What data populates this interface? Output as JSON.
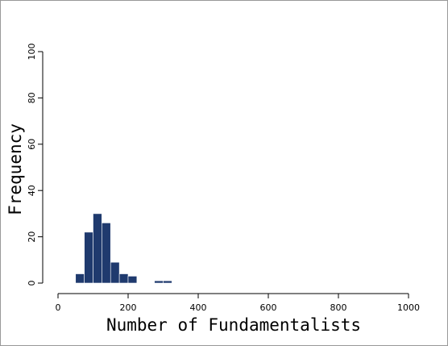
{
  "chart_data": {
    "type": "histogram",
    "x_label": "Number of Fundamentalists",
    "y_label": "Frequency",
    "bins": [
      50,
      75,
      100,
      125,
      150,
      175,
      200,
      225,
      250,
      275,
      300,
      325
    ],
    "values": [
      4,
      22,
      30,
      26,
      9,
      4,
      3,
      0,
      0,
      1,
      1
    ],
    "color": "#1f3a6e",
    "xlim": [
      0,
      1000
    ],
    "xticks": [
      0,
      200,
      400,
      600,
      800,
      1000
    ],
    "ylim": [
      0,
      100
    ],
    "yticks": [
      0,
      20,
      40,
      60,
      80,
      100
    ],
    "grid": false
  }
}
